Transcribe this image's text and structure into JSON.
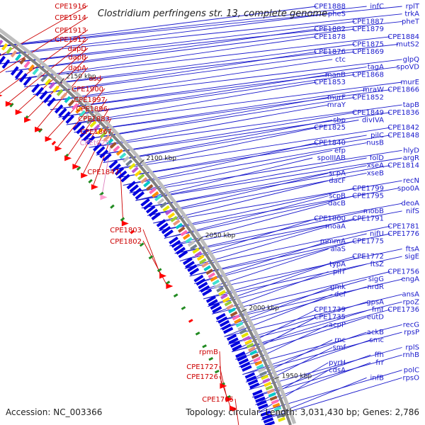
{
  "title": "Clostridium perfringens str. 13, complete genome",
  "footer": {
    "accession": "Accession: NC_003366",
    "topology": "Topology: circular; Length: 3,031,430 bp; Genes: 2,786"
  },
  "colors": {
    "left_label": "#cc0000",
    "left_label_rna": "#e080c0",
    "right_label": "#1a1acc",
    "axis_line": "#808080",
    "forward_genes": "#0000e0"
  },
  "kbp_ticks": [
    "2150 kbp",
    "2100 kbp",
    "2050 kbp",
    "2000 kbp",
    "1950 kbp"
  ],
  "left_labels": [
    "CPE1916",
    "CPE1914",
    "CPE1913",
    "CPE1912",
    "dapD",
    "dapB",
    "dapA",
    "asd",
    "CPE1900",
    "CPE1897",
    "CPE1896",
    "CPE1883",
    "CPE1867",
    "CPEt025",
    "CPE1847",
    "CPE1803",
    "CPE1802",
    "rpmB",
    "CPE1727",
    "CPE1726",
    "CPE1705"
  ],
  "right_labels": [
    "rplT",
    "CPE1888",
    "infC",
    "trkA",
    "pheS",
    "CPE1887",
    "pheT",
    "CPE1882",
    "CPE1879",
    "CPE1884",
    "CPE1878",
    "CPE1875",
    "mutS2",
    "CPE1876",
    "CPE1869",
    "glpQ",
    "ctc",
    "tagA",
    "spoVD",
    "manB",
    "CPE1868",
    "murE",
    "CPE1853",
    "mraW",
    "CPE1866",
    "murF",
    "CPE1852",
    "tapB",
    "mraY",
    "CPE1849",
    "CPE1836",
    "sbp",
    "divIVA",
    "CPE1842",
    "CPE1825",
    "pilC",
    "CPE1848",
    "CPE1840",
    "nusB",
    "hlyD",
    "efp",
    "folD",
    "argR",
    "spoIIIAB",
    "xseA",
    "CPE1814",
    "scpA",
    "xseB",
    "recN",
    "dacF",
    "CPE1799",
    "spo0A",
    "scpB",
    "CPE1795",
    "deoA",
    "dacB",
    "mobB",
    "nifS",
    "CPE1800",
    "CPE1791",
    "CPE1781",
    "moaA",
    "nifU",
    "CPE1776",
    "mmmA",
    "CPE1775",
    "ftsA",
    "alaS",
    "CPE1772",
    "sigE",
    "typA",
    "ftsZ",
    "CPE1756",
    "pilT",
    "sigG",
    "engA",
    "gmk",
    "nrdR",
    "ansA",
    "def",
    "gpsA",
    "rpoZ",
    "CPE1739",
    "fmt",
    "CPE1736",
    "CPE1735",
    "eutD",
    "recG",
    "acpP",
    "ackB",
    "rpsP",
    "rnc",
    "smc",
    "rplS",
    "smf",
    "ffh",
    "rnhB",
    "pyrH",
    "frr",
    "polC",
    "cdsA",
    "infB",
    "rpsO"
  ]
}
